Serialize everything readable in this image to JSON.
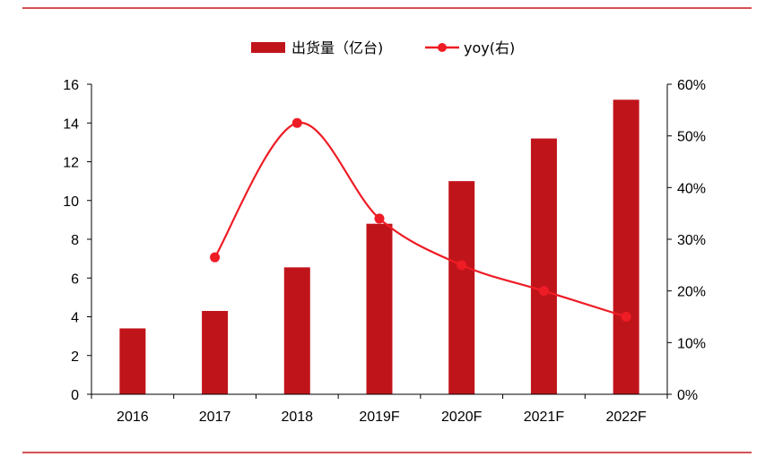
{
  "colors": {
    "frame_line": "#c8161d",
    "bar": "#c0141b",
    "line": "#ee1c25",
    "axis": "#000000"
  },
  "chart_data": {
    "type": "bar",
    "categories": [
      "2016",
      "2017",
      "2018",
      "2019F",
      "2020F",
      "2021F",
      "2022F"
    ],
    "series": [
      {
        "name": "出货量（亿台)",
        "kind": "bar",
        "axis": "left",
        "values": [
          3.4,
          4.3,
          6.55,
          8.8,
          11.0,
          13.2,
          15.2
        ]
      },
      {
        "name": "yoy(右)",
        "kind": "line",
        "axis": "right",
        "smooth": true,
        "values": [
          null,
          0.265,
          0.525,
          0.34,
          0.25,
          0.2,
          0.15
        ]
      }
    ],
    "y_left": {
      "min": 0,
      "max": 16,
      "step": 2,
      "ticks": [
        "0",
        "2",
        "4",
        "6",
        "8",
        "10",
        "12",
        "14",
        "16"
      ]
    },
    "y_right": {
      "min": 0,
      "max": 0.6,
      "step": 0.1,
      "ticks": [
        "0%",
        "10%",
        "20%",
        "30%",
        "40%",
        "50%",
        "60%"
      ]
    },
    "legend": {
      "placement": "top-center"
    },
    "grid": false
  }
}
